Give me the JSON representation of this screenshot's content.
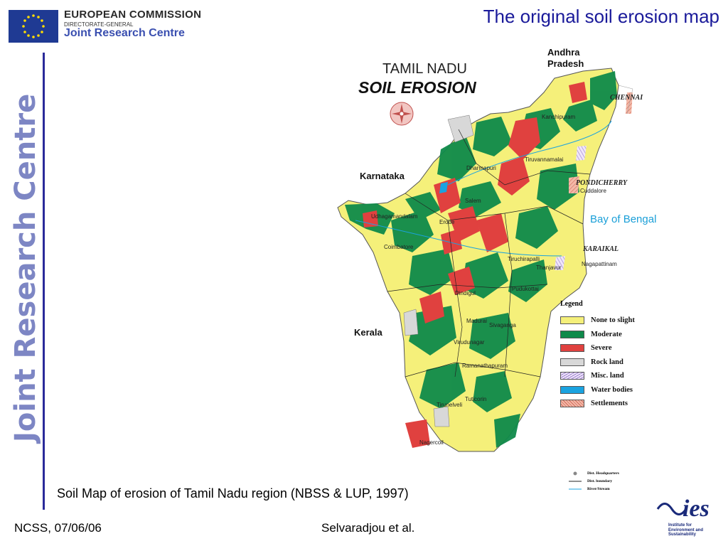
{
  "header": {
    "org_title": "EUROPEAN COMMISSION",
    "org_dg": "DIRECTORATE-GENERAL",
    "org_jrc": "Joint Research Centre",
    "slide_title": "The original soil erosion map"
  },
  "sidebar": {
    "brand": "Joint Research Centre"
  },
  "map": {
    "title": "TAMIL NADU",
    "subtitle": "SOIL EROSION",
    "regions": {
      "andhra": "Andhra",
      "pradesh": "Pradesh",
      "karnataka": "Karnataka",
      "kerala": "Kerala",
      "chennai": "CHENNAI",
      "pondicherry": "PONDICHERRY",
      "karaikal": "KARAIKAL",
      "bay": "Bay of Bengal"
    },
    "places": {
      "kanchipuram": "Kanchipuram",
      "tiruvannamalai": "Tiruvannamalai",
      "dharmapuri": "Dharmapuri",
      "cuddalore": "Cuddalore",
      "salem": "Salem",
      "udhagamandalam": "Udhagamandalam",
      "erode": "Erode",
      "coimbatore": "Coimbatore",
      "tiruchirapalli": "Tiruchirapalli",
      "nagapattinam": "Nagapattinam",
      "thanjavur": "Thanjavur",
      "pudukottai": "Pudukottai",
      "dindigul": "Dindigul",
      "madurai": "Madurai",
      "sivaganga": "Sivaganga",
      "virudunagar": "Virudunagar",
      "ramanathapuram": "Ramanathapuram",
      "tuticorin": "Tuticorin",
      "tirunelveli": "Tirunelveli",
      "nagercoil": "Nagercoil"
    },
    "legend": {
      "title": "Legend",
      "items": [
        {
          "label": "None to slight",
          "color": "#f5f07a"
        },
        {
          "label": "Moderate",
          "color": "#0f8a4a"
        },
        {
          "label": "Severe",
          "color": "#e0413f"
        },
        {
          "label": "Rock land",
          "color": "#d8d8d8"
        },
        {
          "label": "Misc. land",
          "color": "#d9c6ee"
        },
        {
          "label": "Water bodies",
          "color": "#1aa3e0"
        },
        {
          "label": "Settlements",
          "color": "#f3b9a8"
        }
      ],
      "extra": [
        {
          "label": "Dist. Headquarters"
        },
        {
          "label": "Dist. boundary"
        },
        {
          "label": "River/Stream"
        }
      ]
    }
  },
  "caption": "Soil Map of erosion of Tamil Nadu region (NBSS & LUP, 1997)",
  "footer": {
    "left": "NCSS, 07/06/06",
    "center": "Selvaradjou et al.",
    "ies_name": "ies",
    "ies_line1": "Institute for",
    "ies_line2": "Environment and",
    "ies_line3": "Sustainability"
  },
  "colors": {
    "title_blue": "#1a1a9a",
    "brand_bar": "#2a2a9a",
    "brand_text": "#7d86c4",
    "none_to_slight": "#f5f07a",
    "moderate": "#0f8a4a",
    "severe": "#e0413f"
  }
}
